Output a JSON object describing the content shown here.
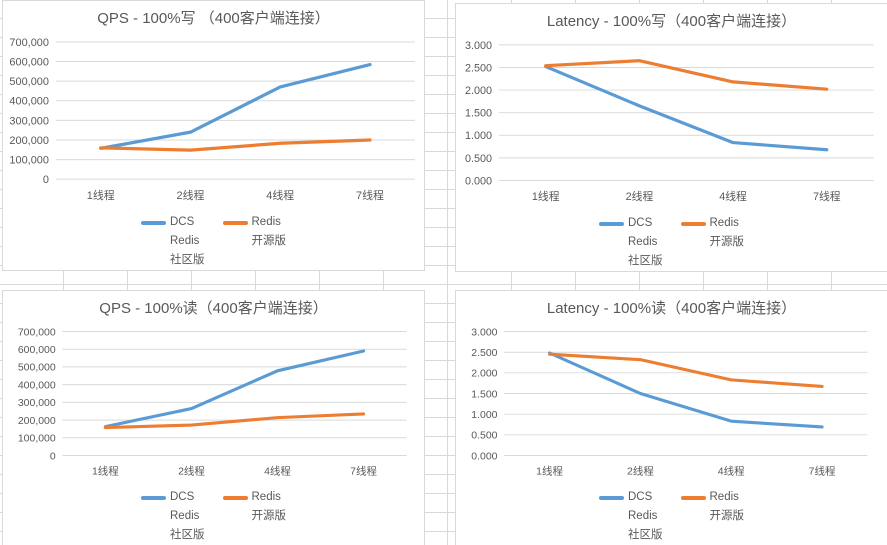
{
  "chart_data": [
    {
      "type": "line",
      "title": "QPS - 100%写 （400客户端连接）",
      "categories": [
        "1线程",
        "2线程",
        "4线程",
        "7线程"
      ],
      "series": [
        {
          "name": "DCS Redis 社区版",
          "legend_lines": [
            "DCS",
            "Redis",
            "社区版"
          ],
          "color": "#5B9BD5",
          "values": [
            157000,
            240000,
            470000,
            585000
          ]
        },
        {
          "name": "Redis 开源版",
          "legend_lines": [
            "Redis",
            "开源版"
          ],
          "color": "#ED7D31",
          "values": [
            160000,
            148000,
            183000,
            200000
          ]
        }
      ],
      "ylim": [
        0,
        700000
      ],
      "ytick_values": [
        0,
        100000,
        200000,
        300000,
        400000,
        500000,
        600000,
        700000
      ],
      "ytick_labels": [
        "0",
        "100,000",
        "200,000",
        "300,000",
        "400,000",
        "500,000",
        "600,000",
        "700,000"
      ],
      "grid": true,
      "legend_position": "bottom"
    },
    {
      "type": "line",
      "title": "Latency - 100%写（400客户端连接）",
      "categories": [
        "1线程",
        "2线程",
        "4线程",
        "7线程"
      ],
      "series": [
        {
          "name": "DCS Redis 社区版",
          "legend_lines": [
            "DCS",
            "Redis",
            "社区版"
          ],
          "color": "#5B9BD5",
          "values": [
            2.52,
            1.65,
            0.84,
            0.68
          ]
        },
        {
          "name": "Redis 开源版",
          "legend_lines": [
            "Redis",
            "开源版"
          ],
          "color": "#ED7D31",
          "values": [
            2.54,
            2.65,
            2.18,
            2.02
          ]
        }
      ],
      "ylim": [
        0,
        3
      ],
      "ytick_values": [
        0,
        0.5,
        1.0,
        1.5,
        2.0,
        2.5,
        3.0
      ],
      "ytick_labels": [
        "0.000",
        "0.500",
        "1.000",
        "1.500",
        "2.000",
        "2.500",
        "3.000"
      ],
      "grid": true,
      "legend_position": "bottom"
    },
    {
      "type": "line",
      "title": "QPS - 100%读（400客户端连接）",
      "categories": [
        "1线程",
        "2线程",
        "4线程",
        "7线程"
      ],
      "series": [
        {
          "name": "DCS Redis 社区版",
          "legend_lines": [
            "DCS",
            "Redis",
            "社区版"
          ],
          "color": "#5B9BD5",
          "values": [
            163000,
            265000,
            478000,
            590000
          ]
        },
        {
          "name": "Redis 开源版",
          "legend_lines": [
            "Redis",
            "开源版"
          ],
          "color": "#ED7D31",
          "values": [
            158000,
            172000,
            214000,
            235000
          ]
        }
      ],
      "ylim": [
        0,
        700000
      ],
      "ytick_values": [
        0,
        100000,
        200000,
        300000,
        400000,
        500000,
        600000,
        700000
      ],
      "ytick_labels": [
        "0",
        "100,000",
        "200,000",
        "300,000",
        "400,000",
        "500,000",
        "600,000",
        "700,000"
      ],
      "grid": true,
      "legend_position": "bottom"
    },
    {
      "type": "line",
      "title": "Latency - 100%读（400客户端连接）",
      "categories": [
        "1线程",
        "2线程",
        "4线程",
        "7线程"
      ],
      "series": [
        {
          "name": "DCS Redis 社区版",
          "legend_lines": [
            "DCS",
            "Redis",
            "社区版"
          ],
          "color": "#5B9BD5",
          "values": [
            2.48,
            1.5,
            0.83,
            0.69
          ]
        },
        {
          "name": "Redis 开源版",
          "legend_lines": [
            "Redis",
            "开源版"
          ],
          "color": "#ED7D31",
          "values": [
            2.45,
            2.32,
            1.83,
            1.67
          ]
        }
      ],
      "ylim": [
        0,
        3
      ],
      "ytick_values": [
        0,
        0.5,
        1.0,
        1.5,
        2.0,
        2.5,
        3.0
      ],
      "ytick_labels": [
        "0.000",
        "0.500",
        "1.000",
        "1.500",
        "2.000",
        "2.500",
        "3.000"
      ],
      "grid": true,
      "legend_position": "bottom"
    }
  ]
}
